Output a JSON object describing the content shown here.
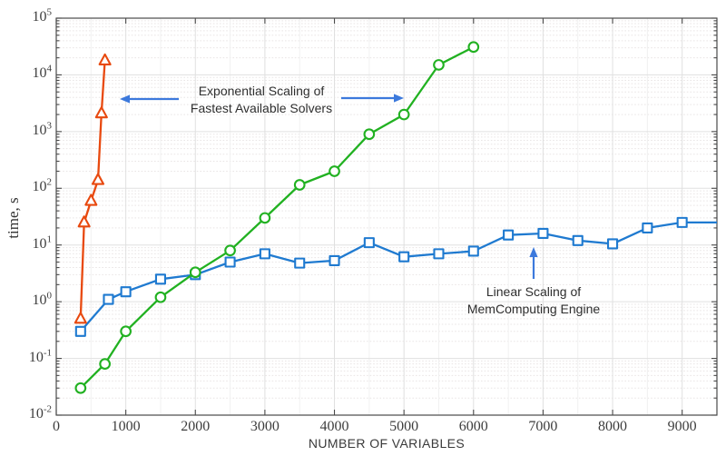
{
  "chart_data": {
    "type": "line",
    "title": "",
    "xlabel": "NUMBER OF VARIABLES",
    "ylabel": "time, s",
    "x_axis": {
      "scale": "linear",
      "min": 0,
      "max": 9500,
      "tick_labels": [
        "0",
        "1000",
        "2000",
        "3000",
        "4000",
        "5000",
        "6000",
        "7000",
        "8000",
        "9000"
      ]
    },
    "y_axis": {
      "scale": "log",
      "min_exponent": -2,
      "max_exponent": 5,
      "tick_base": "10",
      "tick_exponents": [
        "5",
        "4",
        "3",
        "2",
        "1",
        "0",
        "-1",
        "-2"
      ]
    },
    "grid": "major and log-minor gridlines on",
    "legend": "none (labelled by arrow annotations)",
    "series": [
      {
        "name": "MemComputing Engine (linear scaling)",
        "marker": "square",
        "color": "#1f7ad0",
        "x": [
          350,
          750,
          1000,
          1500,
          2000,
          2500,
          3000,
          3500,
          4000,
          4500,
          5000,
          5500,
          6000,
          6500,
          7000,
          7500,
          8000,
          8500,
          9000,
          9500
        ],
        "y": [
          0.3,
          1.1,
          1.5,
          2.5,
          3.0,
          5.0,
          7.0,
          4.8,
          5.3,
          11,
          6.2,
          7.0,
          7.8,
          15,
          16,
          12,
          10.5,
          20,
          25,
          25
        ],
        "note": "line continues to right edge at x=9500 without a marker"
      },
      {
        "name": "Fastest Available Solvers (exponential scaling, green)",
        "marker": "circle",
        "color": "#21b121",
        "x": [
          350,
          700,
          1000,
          1500,
          2000,
          2500,
          3000,
          3500,
          4000,
          4500,
          5000,
          5500,
          6000
        ],
        "y": [
          0.03,
          0.08,
          0.3,
          1.2,
          3.3,
          8,
          30,
          115,
          200,
          900,
          2000,
          15000,
          31000
        ]
      },
      {
        "name": "Fastest Available Solvers (exponential scaling, red steep)",
        "marker": "triangle",
        "color": "#e8490f",
        "x": [
          350,
          400,
          500,
          600,
          650,
          700
        ],
        "y": [
          0.5,
          25,
          60,
          140,
          2100,
          18000
        ]
      }
    ],
    "annotations": [
      {
        "id": "exponential",
        "lines": [
          "Exponential Scaling of",
          "Fastest Available Solvers"
        ],
        "arrows": "blue arrow left toward red curve, blue arrow right toward green curve"
      },
      {
        "id": "linear",
        "lines": [
          "Linear Scaling of",
          "MemComputing Engine"
        ],
        "arrows": "blue arrow up toward blue curve"
      }
    ]
  },
  "colors": {
    "series_red": "#e8490f",
    "series_green": "#21b121",
    "series_blue": "#1f7ad0",
    "annotation_arrow": "#3c79dc",
    "grid_major": "#e0e0e0",
    "grid_minor": "#e9e5e5",
    "axis_box": "#4a4a4a",
    "tick_text": "#3d3d3d",
    "label_text": "#3a3a3a"
  }
}
